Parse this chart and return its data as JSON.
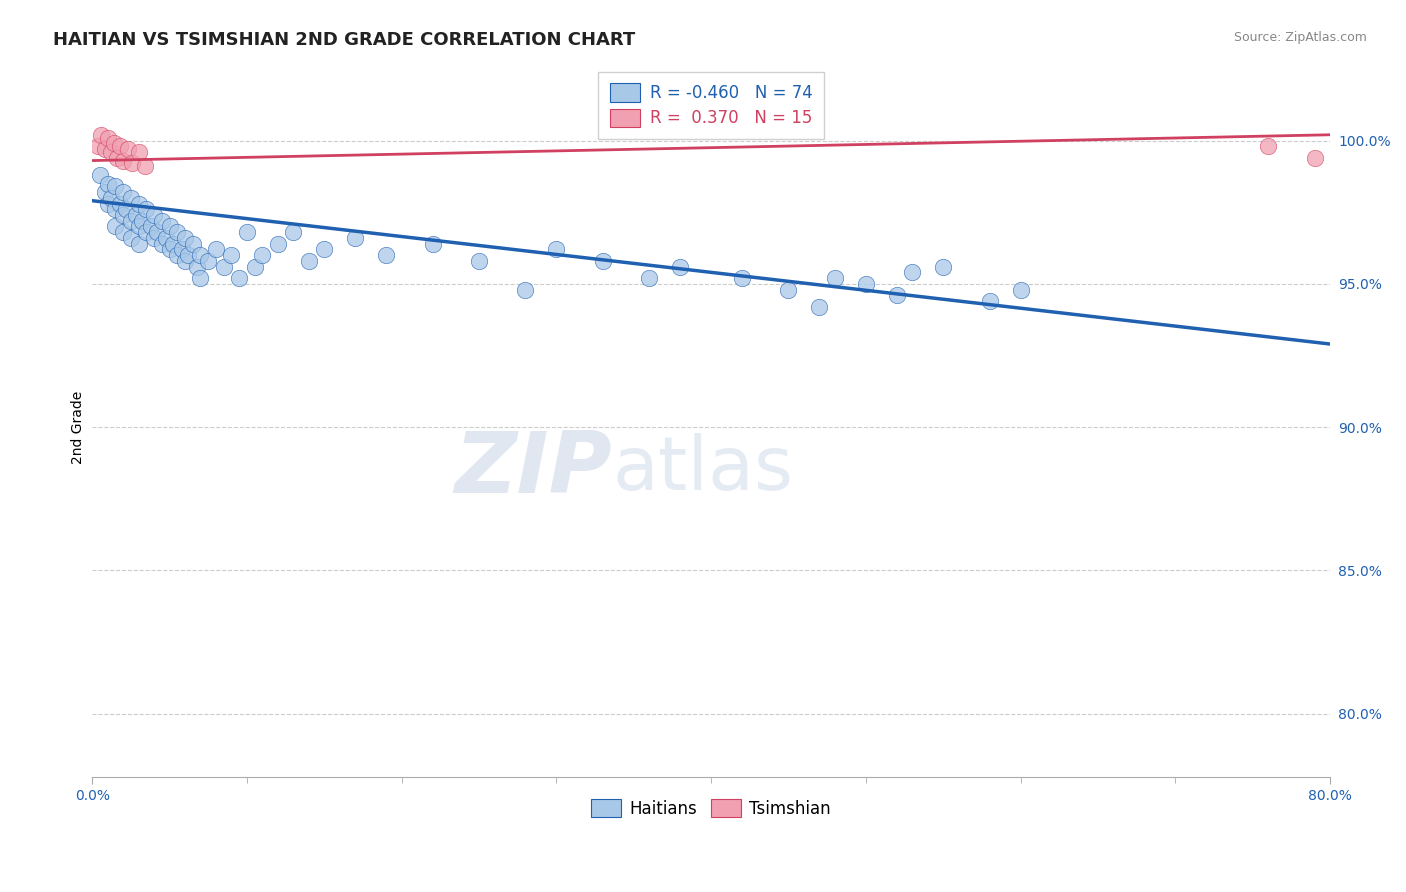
{
  "title": "HAITIAN VS TSIMSHIAN 2ND GRADE CORRELATION CHART",
  "source": "Source: ZipAtlas.com",
  "ylabel": "2nd Grade",
  "ytick_labels": [
    "100.0%",
    "95.0%",
    "90.0%",
    "85.0%",
    "80.0%"
  ],
  "ytick_values": [
    1.0,
    0.95,
    0.9,
    0.85,
    0.8
  ],
  "xtick_labels": [
    "0.0%",
    "80.0%"
  ],
  "xtick_values": [
    0.0,
    0.8
  ],
  "xmin": 0.0,
  "xmax": 0.8,
  "ymin": 0.778,
  "ymax": 1.022,
  "blue_R": -0.46,
  "blue_N": 74,
  "pink_R": 0.37,
  "pink_N": 15,
  "blue_color": "#a8c8e8",
  "blue_line_color": "#2060b0",
  "pink_color": "#f0a0b0",
  "pink_line_color": "#d04060",
  "grid_color": "#cccccc",
  "watermark_color": "#ccd8e8",
  "blue_scatter_x": [
    0.005,
    0.008,
    0.01,
    0.01,
    0.012,
    0.015,
    0.015,
    0.015,
    0.018,
    0.02,
    0.02,
    0.02,
    0.022,
    0.025,
    0.025,
    0.025,
    0.028,
    0.03,
    0.03,
    0.03,
    0.032,
    0.035,
    0.035,
    0.038,
    0.04,
    0.04,
    0.042,
    0.045,
    0.045,
    0.048,
    0.05,
    0.05,
    0.052,
    0.055,
    0.055,
    0.058,
    0.06,
    0.06,
    0.062,
    0.065,
    0.068,
    0.07,
    0.07,
    0.075,
    0.08,
    0.085,
    0.09,
    0.095,
    0.1,
    0.105,
    0.11,
    0.12,
    0.13,
    0.14,
    0.15,
    0.17,
    0.19,
    0.22,
    0.25,
    0.28,
    0.3,
    0.33,
    0.36,
    0.38,
    0.42,
    0.45,
    0.48,
    0.52,
    0.55,
    0.58,
    0.6,
    0.5,
    0.53,
    0.47
  ],
  "blue_scatter_y": [
    0.988,
    0.982,
    0.985,
    0.978,
    0.98,
    0.984,
    0.976,
    0.97,
    0.978,
    0.982,
    0.974,
    0.968,
    0.976,
    0.98,
    0.972,
    0.966,
    0.974,
    0.978,
    0.97,
    0.964,
    0.972,
    0.976,
    0.968,
    0.97,
    0.974,
    0.966,
    0.968,
    0.972,
    0.964,
    0.966,
    0.97,
    0.962,
    0.964,
    0.968,
    0.96,
    0.962,
    0.966,
    0.958,
    0.96,
    0.964,
    0.956,
    0.96,
    0.952,
    0.958,
    0.962,
    0.956,
    0.96,
    0.952,
    0.968,
    0.956,
    0.96,
    0.964,
    0.968,
    0.958,
    0.962,
    0.966,
    0.96,
    0.964,
    0.958,
    0.948,
    0.962,
    0.958,
    0.952,
    0.956,
    0.952,
    0.948,
    0.952,
    0.946,
    0.956,
    0.944,
    0.948,
    0.95,
    0.954,
    0.942
  ],
  "pink_scatter_x": [
    0.004,
    0.006,
    0.008,
    0.01,
    0.012,
    0.014,
    0.016,
    0.018,
    0.02,
    0.023,
    0.026,
    0.03,
    0.034,
    0.76,
    0.79
  ],
  "pink_scatter_y": [
    0.998,
    1.002,
    0.997,
    1.001,
    0.996,
    0.999,
    0.994,
    0.998,
    0.993,
    0.997,
    0.992,
    0.996,
    0.991,
    0.998,
    0.994
  ],
  "blue_trend_x0": 0.0,
  "blue_trend_x1": 0.8,
  "blue_trend_y0": 0.979,
  "blue_trend_y1": 0.929,
  "pink_trend_x0": 0.0,
  "pink_trend_x1": 0.8,
  "pink_trend_y0": 0.993,
  "pink_trend_y1": 1.002,
  "title_fontsize": 13,
  "tick_fontsize": 10,
  "source_fontsize": 9,
  "legend_fontsize": 12,
  "ylabel_fontsize": 10
}
